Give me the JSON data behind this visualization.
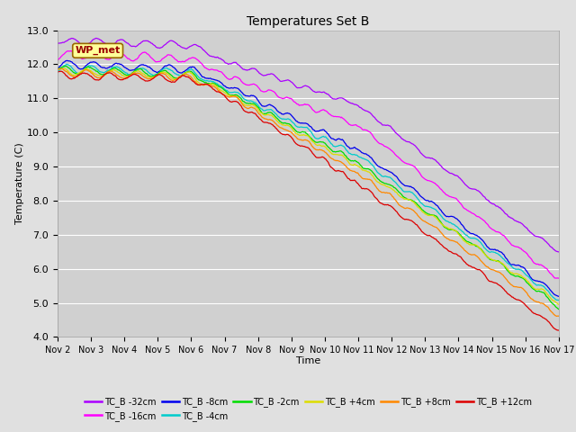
{
  "title": "Temperatures Set B",
  "xlabel": "Time",
  "ylabel": "Temperature (C)",
  "ylim": [
    4.0,
    13.0
  ],
  "xlim": [
    0,
    360
  ],
  "yticks": [
    4.0,
    5.0,
    6.0,
    7.0,
    8.0,
    9.0,
    10.0,
    11.0,
    12.0,
    13.0
  ],
  "xtick_labels": [
    "Nov 2",
    "Nov 3",
    "Nov 4",
    "Nov 5",
    "Nov 6",
    "Nov 7",
    "Nov 8",
    "Nov 9",
    "Nov 10",
    "Nov 11",
    "Nov 12",
    "Nov 13",
    "Nov 14",
    "Nov 15",
    "Nov 16",
    "Nov 17"
  ],
  "xtick_positions": [
    0,
    24,
    48,
    72,
    96,
    120,
    144,
    168,
    192,
    216,
    240,
    264,
    288,
    312,
    336,
    360
  ],
  "series": [
    {
      "label": "TC_B -32cm",
      "color": "#aa00ff",
      "start": 12.7,
      "mid": 10.8,
      "end": 6.5
    },
    {
      "label": "TC_B -16cm",
      "color": "#ff00ff",
      "start": 12.3,
      "mid": 10.2,
      "end": 5.7
    },
    {
      "label": "TC_B -8cm",
      "color": "#0000ee",
      "start": 12.0,
      "mid": 9.5,
      "end": 5.2
    },
    {
      "label": "TC_B -4cm",
      "color": "#00cccc",
      "start": 11.9,
      "mid": 9.3,
      "end": 5.1
    },
    {
      "label": "TC_B -2cm",
      "color": "#00dd00",
      "start": 11.85,
      "mid": 9.1,
      "end": 4.9
    },
    {
      "label": "TC_B +4cm",
      "color": "#dddd00",
      "start": 11.8,
      "mid": 9.0,
      "end": 5.0
    },
    {
      "label": "TC_B +8cm",
      "color": "#ff8800",
      "start": 11.75,
      "mid": 8.8,
      "end": 4.6
    },
    {
      "label": "TC_B +12cm",
      "color": "#dd0000",
      "start": 11.7,
      "mid": 8.5,
      "end": 4.2
    }
  ],
  "wp_met_box_color": "#ffff99",
  "wp_met_edge_color": "#996600",
  "wp_met_text_color": "#990000",
  "bg_color": "#e0e0e0",
  "plot_bg_color": "#d0d0d0",
  "grid_color": "#ffffff",
  "linewidth": 0.9
}
